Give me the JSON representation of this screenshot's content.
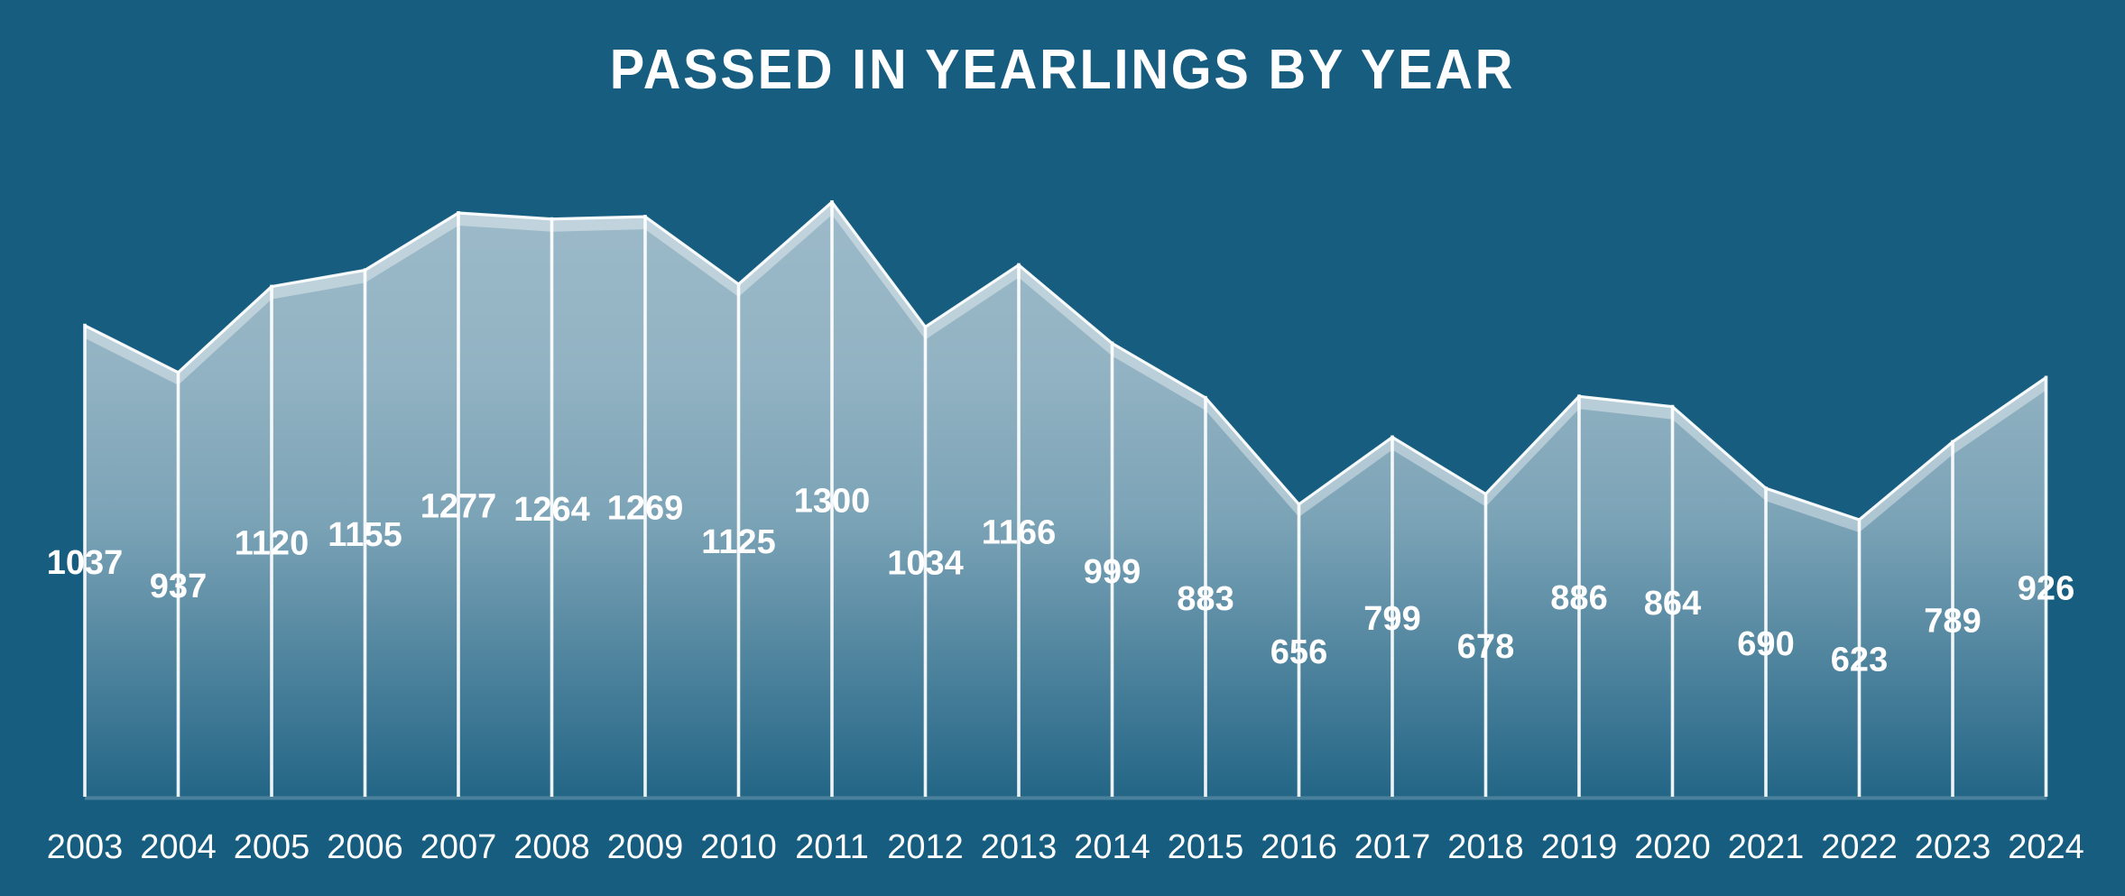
{
  "title": "PASSED IN YEARLINGS BY YEAR",
  "colors": {
    "background": "#175D7F",
    "label_text": "#FFFFFF",
    "line": "#FFFFFF",
    "area_fill_base": "#FFFFFF"
  },
  "chart_data": {
    "type": "area",
    "title": "PASSED IN YEARLINGS BY YEAR",
    "categories": [
      "2003",
      "2004",
      "2005",
      "2006",
      "2007",
      "2008",
      "2009",
      "2010",
      "2011",
      "2012",
      "2013",
      "2014",
      "2015",
      "2016",
      "2017",
      "2018",
      "2019",
      "2020",
      "2021",
      "2022",
      "2023",
      "2024"
    ],
    "values": [
      1037,
      937,
      1120,
      1155,
      1277,
      1264,
      1269,
      1125,
      1300,
      1034,
      1166,
      999,
      883,
      656,
      799,
      678,
      886,
      864,
      690,
      623,
      789,
      926
    ],
    "xlabel": "",
    "ylabel": "",
    "legend": "none",
    "grid": false,
    "value_labels_shown": true
  }
}
